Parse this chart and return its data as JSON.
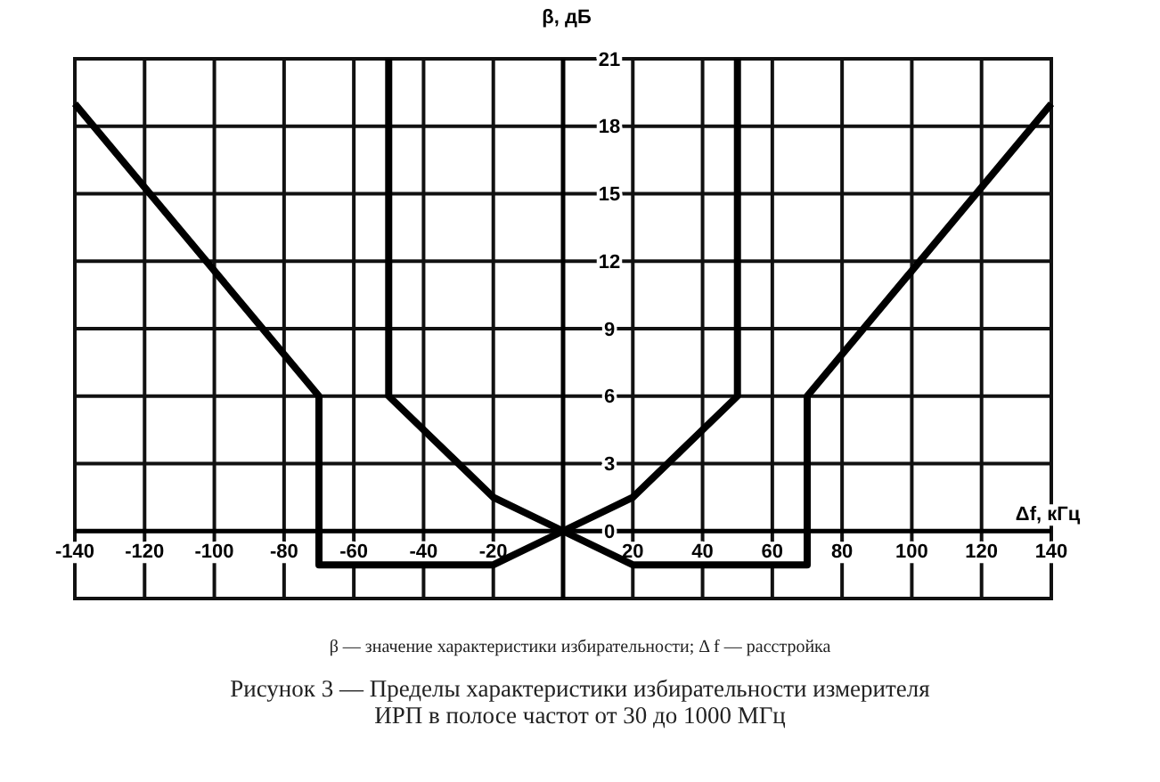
{
  "chart_data": {
    "type": "line",
    "xlabel": "Δf, кГц",
    "ylabel": "β, дБ",
    "title": "Рисунок 3 — Пределы характеристики избирательности измерителя ИРП в полосе частот от 30 до 1000 МГц",
    "annotations": [
      "β — значение характеристики избирательности; Δ f — расстройка"
    ],
    "series": [
      {
        "color": "#000000",
        "x": [
          -140,
          -70,
          -70,
          -20,
          0,
          20,
          70,
          70,
          140
        ],
        "values": [
          19,
          6,
          -1.5,
          -1.5,
          0,
          -1.5,
          -1.5,
          6,
          19
        ]
      },
      {
        "color": "#000000",
        "x": [
          -50,
          -50,
          -20,
          0,
          20,
          50,
          50
        ],
        "values": [
          21,
          6,
          1.5,
          0,
          1.5,
          6,
          21
        ]
      }
    ],
    "xlim": [
      -140,
      140
    ],
    "ylim": [
      -3,
      21
    ],
    "xticks": [
      -140,
      -120,
      -100,
      -80,
      -60,
      -40,
      -20,
      {
        "value": 0,
        "label": null
      },
      20,
      40,
      60,
      80,
      100,
      120,
      140
    ],
    "yticks": [
      0,
      3,
      6,
      9,
      12,
      15,
      18,
      21
    ],
    "grid": true,
    "marker": "none",
    "line_style": "solid"
  }
}
